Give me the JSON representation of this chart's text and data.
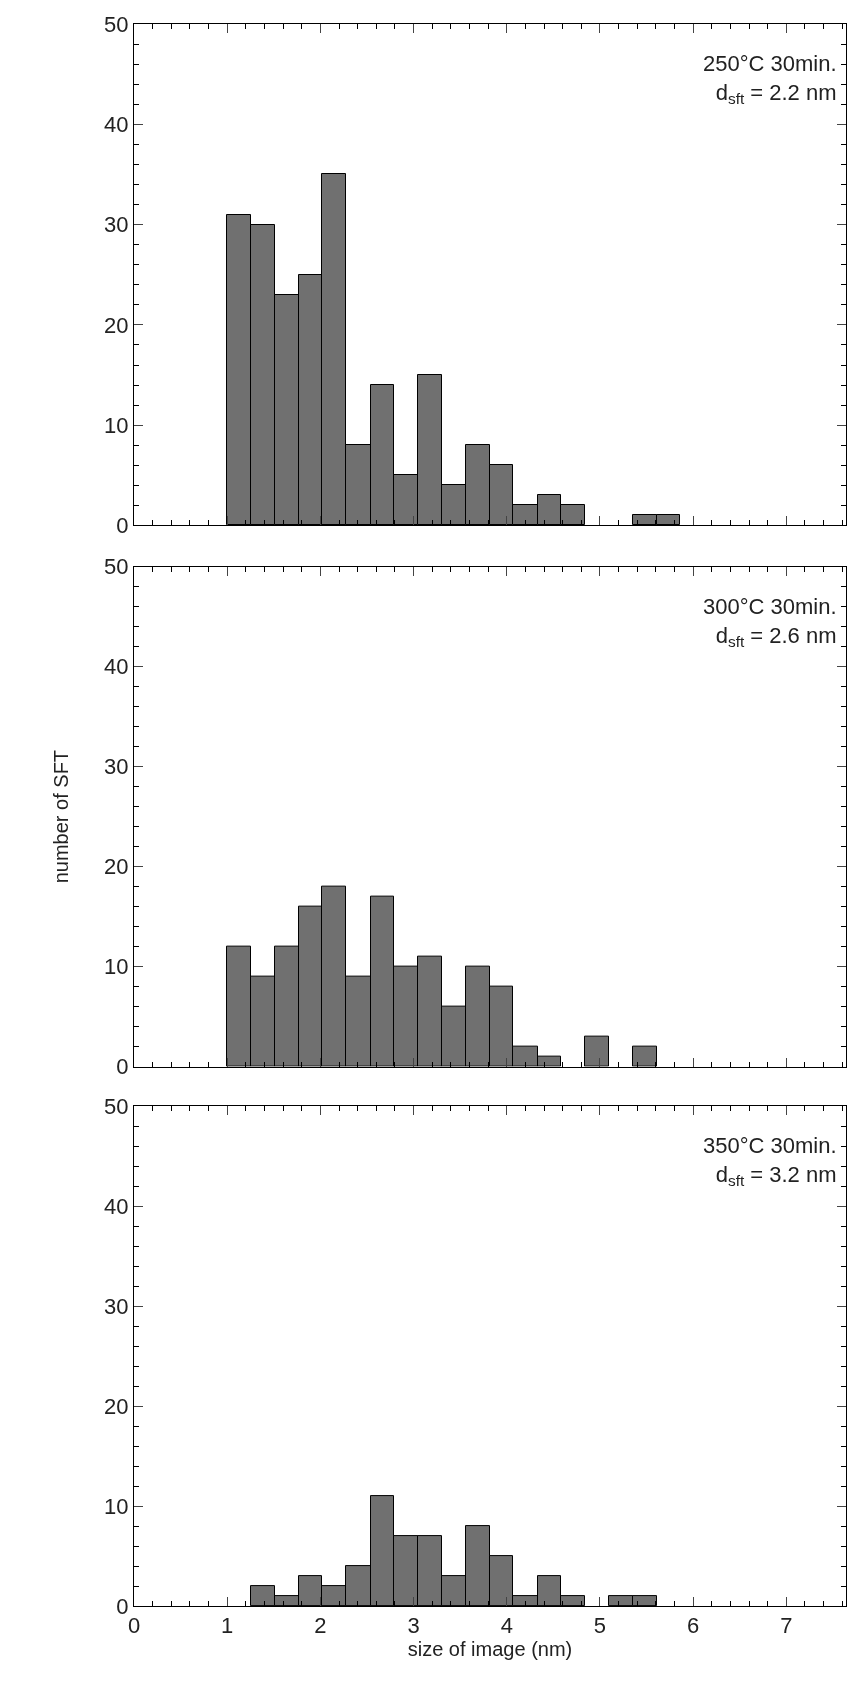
{
  "chart_data": [
    {
      "type": "histogram",
      "annotations": [
        "250°C 30min.\nd$_{sft}$ = 2.2 nm"
      ],
      "color": "#707070",
      "bins": [
        1.0,
        1.26,
        1.51,
        1.77,
        2.02,
        2.28,
        2.54,
        2.79,
        3.05,
        3.3,
        3.56,
        3.82,
        4.07,
        4.33,
        4.58,
        4.84,
        5.35,
        5.61,
        5.86
      ],
      "values": [
        31,
        30,
        23,
        25,
        35,
        8,
        14,
        5,
        15,
        4,
        8,
        6,
        2,
        3,
        2,
        0,
        1,
        1
      ],
      "xlim": [
        0,
        7.64
      ],
      "xticks": [
        0,
        1,
        2,
        3,
        4,
        5,
        6,
        7
      ],
      "ylim": [
        0,
        50
      ],
      "yticks": [
        0,
        10,
        20,
        30,
        40,
        50
      ],
      "tick_labels": "y"
    },
    {
      "type": "histogram",
      "ylabel": "number of SFT",
      "annotations": [
        "300°C 30min.\nd$_{sft}$ = 2.6 nm"
      ],
      "color": "#707070",
      "bins": [
        1.0,
        1.26,
        1.51,
        1.77,
        2.02,
        2.28,
        2.54,
        2.79,
        3.05,
        3.3,
        3.56,
        3.82,
        4.07,
        4.33,
        4.58,
        4.84,
        5.1,
        5.35,
        5.61
      ],
      "values": [
        12,
        9,
        12,
        16,
        18,
        9,
        17,
        10,
        11,
        6,
        10,
        8,
        2,
        1,
        0,
        3,
        0,
        2
      ],
      "xlim": [
        0,
        7.64
      ],
      "xticks": [
        0,
        1,
        2,
        3,
        4,
        5,
        6,
        7
      ],
      "ylim": [
        0,
        50
      ],
      "yticks": [
        0,
        10,
        20,
        30,
        40,
        50
      ],
      "tick_labels": "y"
    },
    {
      "type": "histogram",
      "xlabel": "size of image (nm)",
      "annotations": [
        "350°C 30min.\nd$_{sft}$ = 3.2 nm"
      ],
      "color": "#707070",
      "bins": [
        1.26,
        1.51,
        1.77,
        2.02,
        2.28,
        2.54,
        2.79,
        3.05,
        3.3,
        3.56,
        3.82,
        4.07,
        4.33,
        4.58,
        4.84,
        5.1,
        5.35,
        5.61
      ],
      "values": [
        2,
        1,
        3,
        2,
        4,
        11,
        7,
        7,
        3,
        8,
        5,
        1,
        3,
        1,
        0,
        1,
        1
      ],
      "xlim": [
        0,
        7.64
      ],
      "xticks": [
        0,
        1,
        2,
        3,
        4,
        5,
        6,
        7
      ],
      "ylim": [
        0,
        50
      ],
      "yticks": [
        0,
        10,
        20,
        30,
        40,
        50
      ]
    }
  ]
}
